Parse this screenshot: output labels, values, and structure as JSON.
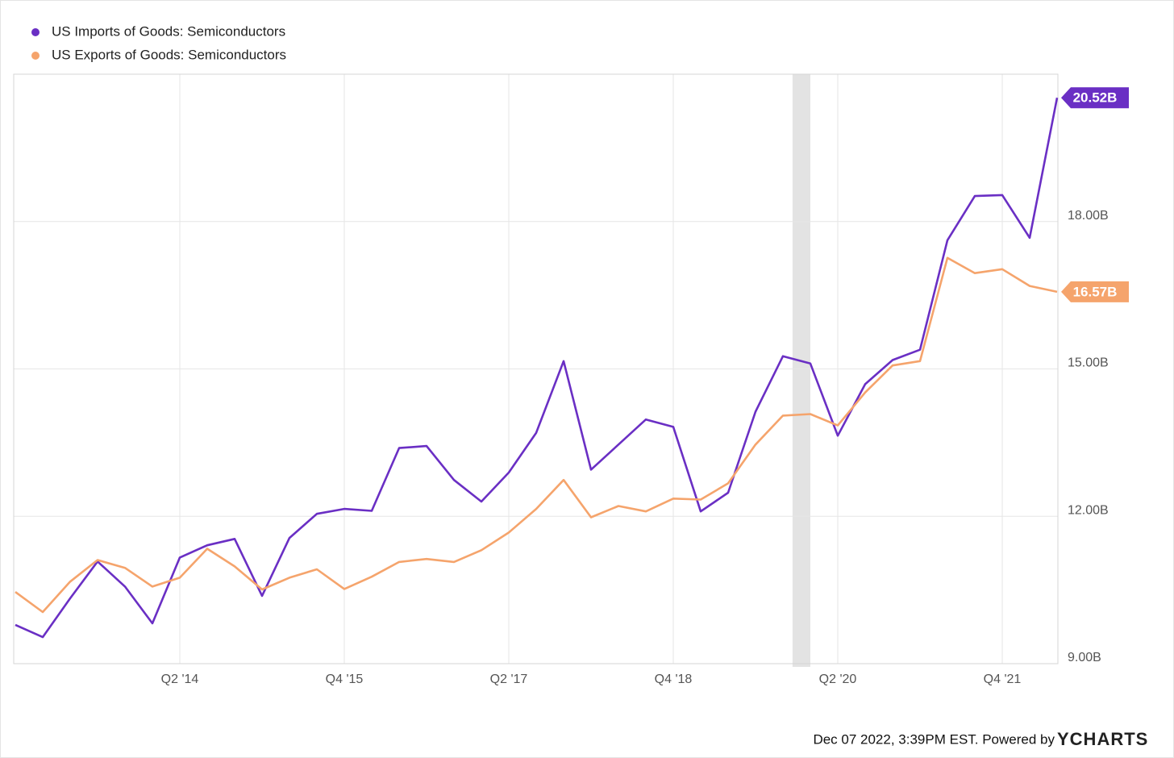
{
  "chart_data": {
    "type": "line",
    "categories": [
      null,
      null,
      null,
      null,
      null,
      null,
      "Q2 '14",
      null,
      null,
      null,
      null,
      null,
      "Q4 '15",
      null,
      null,
      null,
      null,
      null,
      "Q2 '17",
      null,
      null,
      null,
      null,
      null,
      "Q4 '18",
      null,
      null,
      null,
      null,
      null,
      "Q2 '20",
      null,
      null,
      null,
      null,
      null,
      "Q4 '21",
      null,
      null
    ],
    "series": [
      {
        "name": "US Imports of Goods: Semiconductors",
        "color": "#6a2fc4",
        "values": [
          9.79,
          9.54,
          10.33,
          11.08,
          10.57,
          9.82,
          11.16,
          11.41,
          11.54,
          10.38,
          11.56,
          12.05,
          12.15,
          12.11,
          13.39,
          13.43,
          12.74,
          12.3,
          12.89,
          13.7,
          15.16,
          12.95,
          13.46,
          13.97,
          13.82,
          12.1,
          12.48,
          14.13,
          15.26,
          15.11,
          13.64,
          14.69,
          15.18,
          15.39,
          17.62,
          18.52,
          18.54,
          17.67,
          20.52
        ],
        "value_labels": [
          null,
          null,
          null,
          null,
          null,
          null,
          null,
          null,
          null,
          null,
          null,
          null,
          null,
          null,
          null,
          null,
          null,
          null,
          null,
          null,
          null,
          null,
          null,
          null,
          null,
          null,
          null,
          null,
          null,
          null,
          null,
          null,
          null,
          null,
          null,
          null,
          null,
          null,
          "20.52B"
        ]
      },
      {
        "name": "US Exports of Goods: Semiconductors",
        "color": "#f5a46c",
        "values": [
          10.46,
          10.05,
          10.67,
          11.11,
          10.95,
          10.57,
          10.75,
          11.34,
          10.98,
          10.51,
          10.75,
          10.92,
          10.52,
          10.77,
          11.07,
          11.13,
          11.07,
          11.31,
          11.67,
          12.15,
          12.74,
          11.98,
          12.21,
          12.1,
          12.36,
          12.34,
          12.67,
          13.46,
          14.05,
          14.08,
          13.85,
          14.52,
          15.07,
          15.16,
          17.26,
          16.95,
          17.03,
          16.69,
          16.57
        ],
        "value_labels": [
          null,
          null,
          null,
          null,
          null,
          null,
          null,
          null,
          null,
          null,
          null,
          null,
          null,
          null,
          null,
          null,
          null,
          null,
          null,
          null,
          null,
          null,
          null,
          null,
          null,
          null,
          null,
          null,
          null,
          null,
          null,
          null,
          null,
          null,
          null,
          null,
          null,
          null,
          "16.57B"
        ]
      }
    ],
    "ylim": [
      9,
      21
    ],
    "yticks": [
      {
        "value": 9,
        "label": "9.00B"
      },
      {
        "value": 12,
        "label": "12.00B"
      },
      {
        "value": 15,
        "label": "15.00B"
      },
      {
        "value": 18,
        "label": "18.00B"
      }
    ],
    "shaded_regions": [
      [
        28.35,
        29
      ]
    ],
    "grid": true,
    "legend": "top-left",
    "credit": "Dec 07 2022, 3:39PM EST. Powered by",
    "brand": "YCHARTS"
  }
}
